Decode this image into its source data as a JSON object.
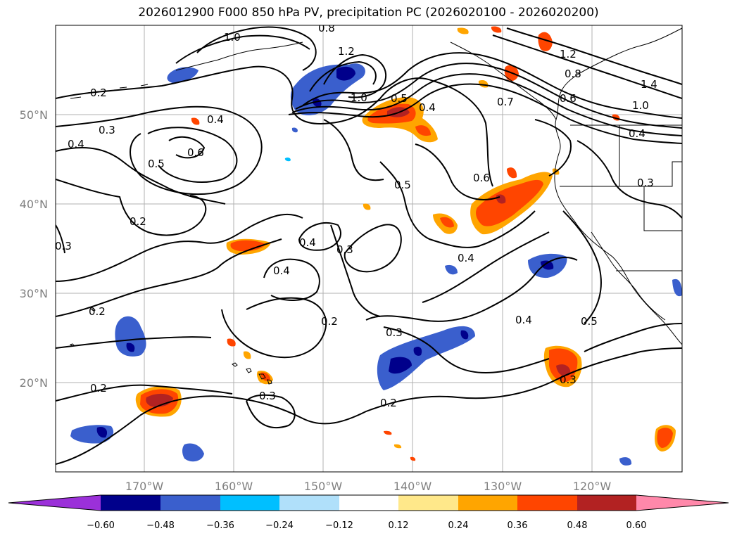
{
  "title": "2026012900 F000 850 hPa PV, precipitation PC (2026020100 - 2026020200)",
  "map": {
    "lat_ticks": [
      "50°N",
      "40°N",
      "30°N",
      "20°N"
    ],
    "lon_ticks": [
      "170°W",
      "160°W",
      "150°W",
      "140°W",
      "130°W",
      "120°W"
    ],
    "contour_labels": [
      "0.2",
      "0.3",
      "0.4",
      "0.5",
      "0.6",
      "0.8",
      "1.0",
      "1.2",
      "1.4",
      "0.7"
    ],
    "gridlines": true
  },
  "colorbar": {
    "ticks": [
      "−0.60",
      "−0.48",
      "−0.36",
      "−0.24",
      "−0.12",
      "0.12",
      "0.24",
      "0.36",
      "0.48",
      "0.60"
    ],
    "colors": [
      "#9b30d9",
      "#00008b",
      "#3a5fcd",
      "#00bfff",
      "#b0e0fa",
      "#ffffff",
      "#ffe88a",
      "#ffa500",
      "#ff4500",
      "#b22222",
      "#ff88aa"
    ],
    "extend": "both"
  }
}
